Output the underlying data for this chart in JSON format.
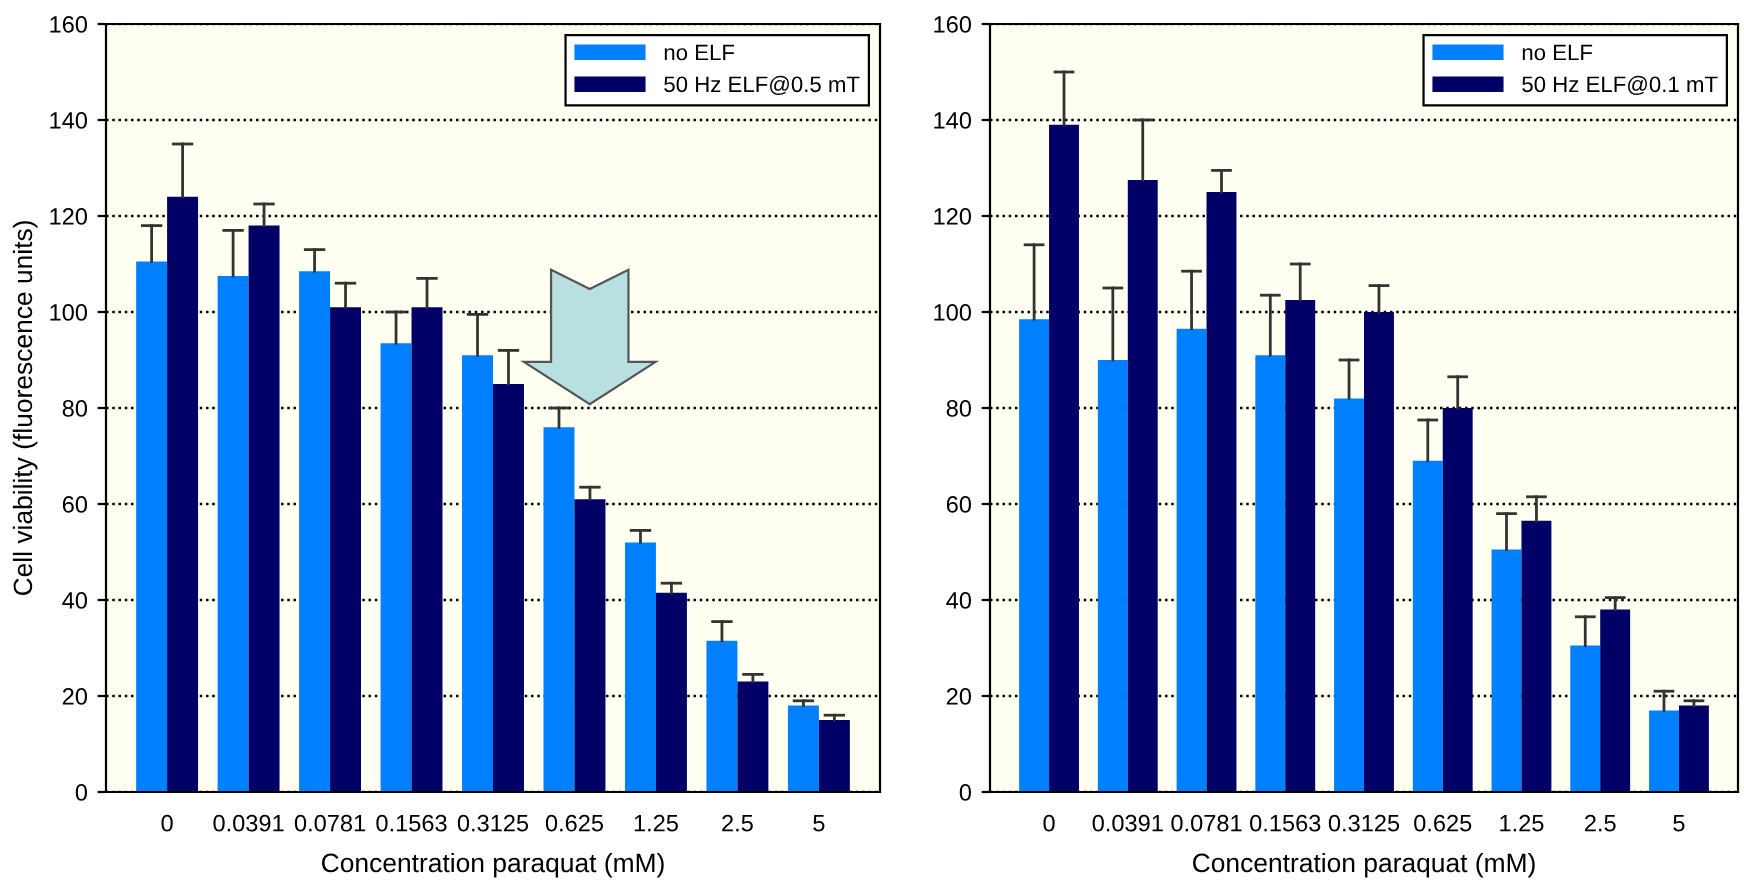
{
  "chart_data": [
    {
      "type": "bar",
      "ylabel": "Cell viability (fluorescence units)",
      "xlabel": "Concentration paraquat (mM)",
      "categories": [
        "0",
        "0.0391",
        "0.0781",
        "0.1563",
        "0.3125",
        "0.625",
        "1.25",
        "2.5",
        "5"
      ],
      "ylim": [
        0,
        160
      ],
      "yticks": [
        0,
        20,
        40,
        60,
        80,
        100,
        120,
        140,
        160
      ],
      "grid": "y",
      "legend": "top right",
      "series": [
        {
          "name": "no ELF",
          "color": "#0080ff",
          "values": [
            110.5,
            107.5,
            108.5,
            93.5,
            91,
            76,
            52,
            31.5,
            18
          ],
          "errors": [
            [
              110.5,
              118
            ],
            [
              107.5,
              117
            ],
            [
              108.5,
              113
            ],
            [
              93.5,
              100
            ],
            [
              91,
              99.5
            ],
            [
              76,
              80
            ],
            [
              52,
              54.5
            ],
            [
              31.5,
              35.5
            ],
            [
              18,
              19
            ]
          ]
        },
        {
          "name": "50 Hz ELF@0.5 mT",
          "color": "#000066",
          "values": [
            124,
            118,
            101,
            101,
            85,
            61,
            41.5,
            23,
            15
          ],
          "errors": [
            [
              124,
              135
            ],
            [
              118,
              122.5
            ],
            [
              101,
              106
            ],
            [
              101,
              107
            ],
            [
              85,
              92
            ],
            [
              61,
              63.5
            ],
            [
              41.5,
              43.5
            ],
            [
              23,
              24.5
            ],
            [
              15,
              16
            ]
          ]
        }
      ]
    },
    {
      "type": "bar",
      "xlabel": "Concentration paraquat (mM)",
      "categories": [
        "0",
        "0.0391",
        "0.0781",
        "0.1563",
        "0.3125",
        "0.625",
        "1.25",
        "2.5",
        "5"
      ],
      "ylim": [
        0,
        160
      ],
      "yticks": [
        0,
        20,
        40,
        60,
        80,
        100,
        120,
        140,
        160
      ],
      "grid": "y",
      "legend": "top right",
      "series": [
        {
          "name": "no ELF",
          "color": "#0080ff",
          "values": [
            98.5,
            90,
            96.5,
            91,
            82,
            69,
            50.5,
            30.5,
            17
          ],
          "errors": [
            [
              98.5,
              114
            ],
            [
              90,
              105
            ],
            [
              96.5,
              108.5
            ],
            [
              91,
              103.5
            ],
            [
              82,
              90
            ],
            [
              69,
              77.5
            ],
            [
              50.5,
              58
            ],
            [
              30.5,
              36.5
            ],
            [
              17,
              21
            ]
          ]
        },
        {
          "name": "50 Hz ELF@0.1 mT",
          "color": "#000066",
          "values": [
            139,
            127.5,
            125,
            102.5,
            100,
            80,
            56.5,
            38,
            18
          ],
          "errors": [
            [
              139,
              150
            ],
            [
              127.5,
              140
            ],
            [
              125,
              129.5
            ],
            [
              102.5,
              110
            ],
            [
              100,
              105.5
            ],
            [
              80,
              86.5
            ],
            [
              56.5,
              61.5
            ],
            [
              38,
              40.5
            ],
            [
              18,
              19
            ]
          ]
        }
      ]
    }
  ]
}
